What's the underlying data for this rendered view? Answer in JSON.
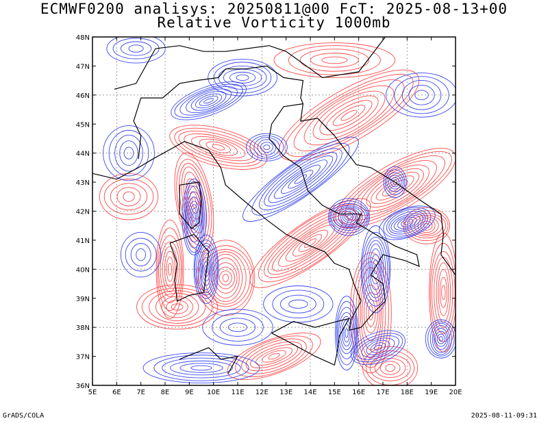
{
  "title_line1": "ECMWF0200 analisys: 20250811@00 FcT: 2025-08-13+00",
  "title_line2": "Relative Vorticity 1000mb",
  "footer_left": "GrADS/COLA",
  "footer_right": "2025-08-11-09:31",
  "map": {
    "lon_range": [
      5,
      20
    ],
    "lat_range": [
      36,
      48
    ],
    "lon_ticks": [
      "5E",
      "6E",
      "7E",
      "8E",
      "9E",
      "10E",
      "11E",
      "12E",
      "13E",
      "14E",
      "15E",
      "16E",
      "17E",
      "18E",
      "19E",
      "20E"
    ],
    "lat_ticks": [
      "36N",
      "37N",
      "38N",
      "39N",
      "40N",
      "41N",
      "42N",
      "43N",
      "44N",
      "45N",
      "46N",
      "47N",
      "48N"
    ],
    "grid": "dotted",
    "colors": {
      "positive_vorticity": "#ff3333",
      "negative_vorticity": "#2233ee",
      "coastline": "#000000",
      "frame": "#000000"
    }
  }
}
